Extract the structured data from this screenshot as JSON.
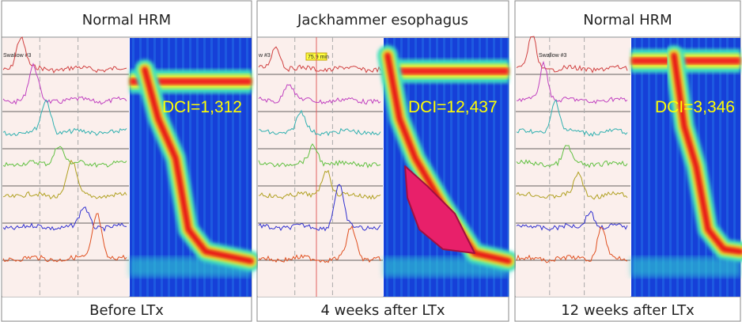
{
  "panels": [
    {
      "title": "Normal HRM",
      "swallow_label": "Swallow #3",
      "dci": "DCI=1,312",
      "caption": "Before LTx"
    },
    {
      "title": "Jackhammer esophagus",
      "swallow_label": "w #3",
      "marker_label": "75.9 min",
      "dci": "DCI=12,437",
      "caption": "4 weeks after LTx"
    },
    {
      "title": "Normal HRM",
      "swallow_label": "Swallow #3",
      "dci": "DCI=3,346",
      "caption": "12 weeks after LTx"
    }
  ]
}
